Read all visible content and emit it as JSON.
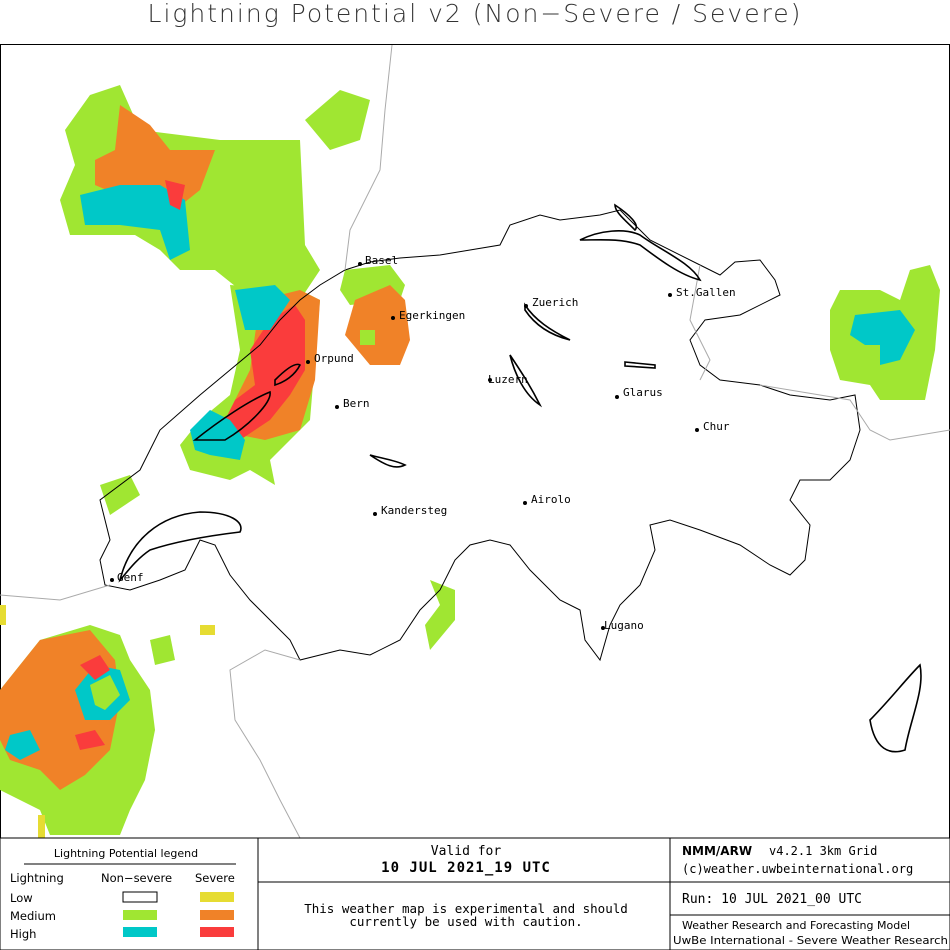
{
  "title": "Lightning Potential v2 (Non−Severe / Severe)",
  "cities": [
    "Basel",
    "Egerkingen",
    "Zuerich",
    "St.Gallen",
    "Orpund",
    "Luzern",
    "Bern",
    "Glarus",
    "Chur",
    "Kandersteg",
    "Airolo",
    "Genf",
    "Lugano"
  ],
  "legend": {
    "title": "Lightning Potential legend",
    "header": [
      "Lightning",
      "Non−severe",
      "Severe"
    ],
    "levels": [
      "Low",
      "Medium",
      "High"
    ]
  },
  "valid": {
    "label": "Valid for",
    "time": "10 JUL 2021_19 UTC",
    "note": [
      "This weather map is experimental and should",
      "currently be used with caution."
    ]
  },
  "model": {
    "name": "NMM/ARW",
    "version": "v4.2.1 3km Grid",
    "site": "(c)weather.uwbeinternational.org",
    "run": "Run: 10 JUL 2021_00 UTC",
    "subtitle": "Weather Research and Forecasting Model",
    "org": "UwBe International - Severe Weather Research"
  }
}
